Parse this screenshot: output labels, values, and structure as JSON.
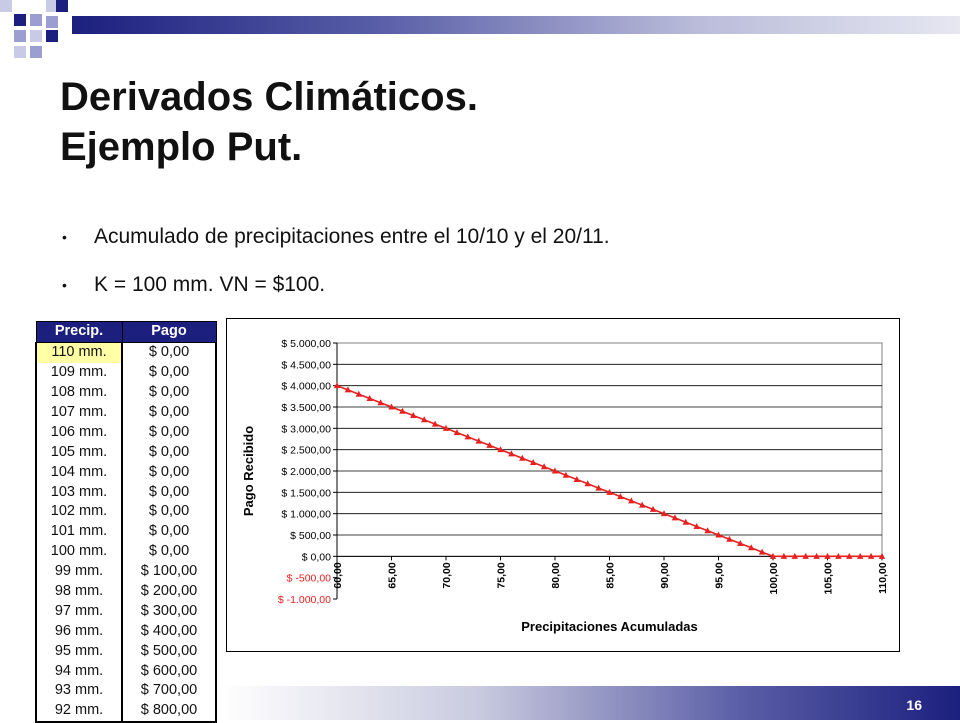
{
  "slide": {
    "title_line1": "Derivados Climáticos.",
    "title_line2": "Ejemplo Put.",
    "bullets": [
      "Acumulado de precipitaciones entre el 10/10 y el 20/11.",
      "K = 100 mm. VN = $100."
    ],
    "bullet_symbol": "•",
    "page_number": "16",
    "colors": {
      "navy": "#1c1f7e",
      "periwinkle": "#9b9ed0",
      "highlight": "#ffffa6",
      "line": "#e8201f",
      "negative_tick": "#e8201f"
    }
  },
  "table": {
    "headers": [
      "Precip.",
      "Pago"
    ],
    "highlighted_row": 0,
    "rows": [
      [
        "110 mm.",
        "$ 0,00"
      ],
      [
        "109 mm.",
        "$ 0,00"
      ],
      [
        "108 mm.",
        "$ 0,00"
      ],
      [
        "107 mm.",
        "$ 0,00"
      ],
      [
        "106 mm.",
        "$ 0,00"
      ],
      [
        "105 mm.",
        "$ 0,00"
      ],
      [
        "104 mm.",
        "$ 0,00"
      ],
      [
        "103 mm.",
        "$ 0,00"
      ],
      [
        "102 mm.",
        "$ 0,00"
      ],
      [
        "101 mm.",
        "$ 0,00"
      ],
      [
        "100 mm.",
        "$ 0,00"
      ],
      [
        "99 mm.",
        "$ 100,00"
      ],
      [
        "98 mm.",
        "$ 200,00"
      ],
      [
        "97 mm.",
        "$ 300,00"
      ],
      [
        "96 mm.",
        "$ 400,00"
      ],
      [
        "95 mm.",
        "$ 500,00"
      ],
      [
        "94 mm.",
        "$ 600,00"
      ],
      [
        "93 mm.",
        "$ 700,00"
      ],
      [
        "92 mm.",
        "$ 800,00"
      ]
    ]
  },
  "chart_data": {
    "type": "line",
    "title": "",
    "xlabel": "Precipitaciones Acumuladas",
    "ylabel": "Pago Recibido",
    "xlim": [
      60,
      110
    ],
    "ylim": [
      -1000,
      5000
    ],
    "y_ticks": [
      5000,
      4500,
      4000,
      3500,
      3000,
      2500,
      2000,
      1500,
      1000,
      500,
      0,
      -500,
      -1000
    ],
    "y_tick_labels": [
      "$ 5.000,00",
      "$ 4.500,00",
      "$ 4.000,00",
      "$ 3.500,00",
      "$ 3.000,00",
      "$ 2.500,00",
      "$ 2.000,00",
      "$ 1.500,00",
      "$ 1.000,00",
      "$ 500,00",
      "$ 0,00",
      "$ -500,00",
      "$ -1.000,00"
    ],
    "x_ticks": [
      60,
      65,
      70,
      75,
      80,
      85,
      90,
      95,
      100,
      105,
      110
    ],
    "x_tick_labels": [
      "60,00",
      "65,00",
      "70,00",
      "75,00",
      "80,00",
      "85,00",
      "90,00",
      "95,00",
      "100,00",
      "105,00",
      "110,00"
    ],
    "grid": {
      "horizontal": true,
      "vertical": false
    },
    "legend": "none",
    "marker": "triangle",
    "series": [
      {
        "x": [
          60,
          61,
          62,
          63,
          64,
          65,
          66,
          67,
          68,
          69,
          70,
          71,
          72,
          73,
          74,
          75,
          76,
          77,
          78,
          79,
          80,
          81,
          82,
          83,
          84,
          85,
          86,
          87,
          88,
          89,
          90,
          91,
          92,
          93,
          94,
          95,
          96,
          97,
          98,
          99,
          100,
          101,
          102,
          103,
          104,
          105,
          106,
          107,
          108,
          109,
          110
        ],
        "values": [
          4000,
          3900,
          3800,
          3700,
          3600,
          3500,
          3400,
          3300,
          3200,
          3100,
          3000,
          2900,
          2800,
          2700,
          2600,
          2500,
          2400,
          2300,
          2200,
          2100,
          2000,
          1900,
          1800,
          1700,
          1600,
          1500,
          1400,
          1300,
          1200,
          1100,
          1000,
          900,
          800,
          700,
          600,
          500,
          400,
          300,
          200,
          100,
          0,
          0,
          0,
          0,
          0,
          0,
          0,
          0,
          0,
          0,
          0
        ]
      }
    ]
  }
}
